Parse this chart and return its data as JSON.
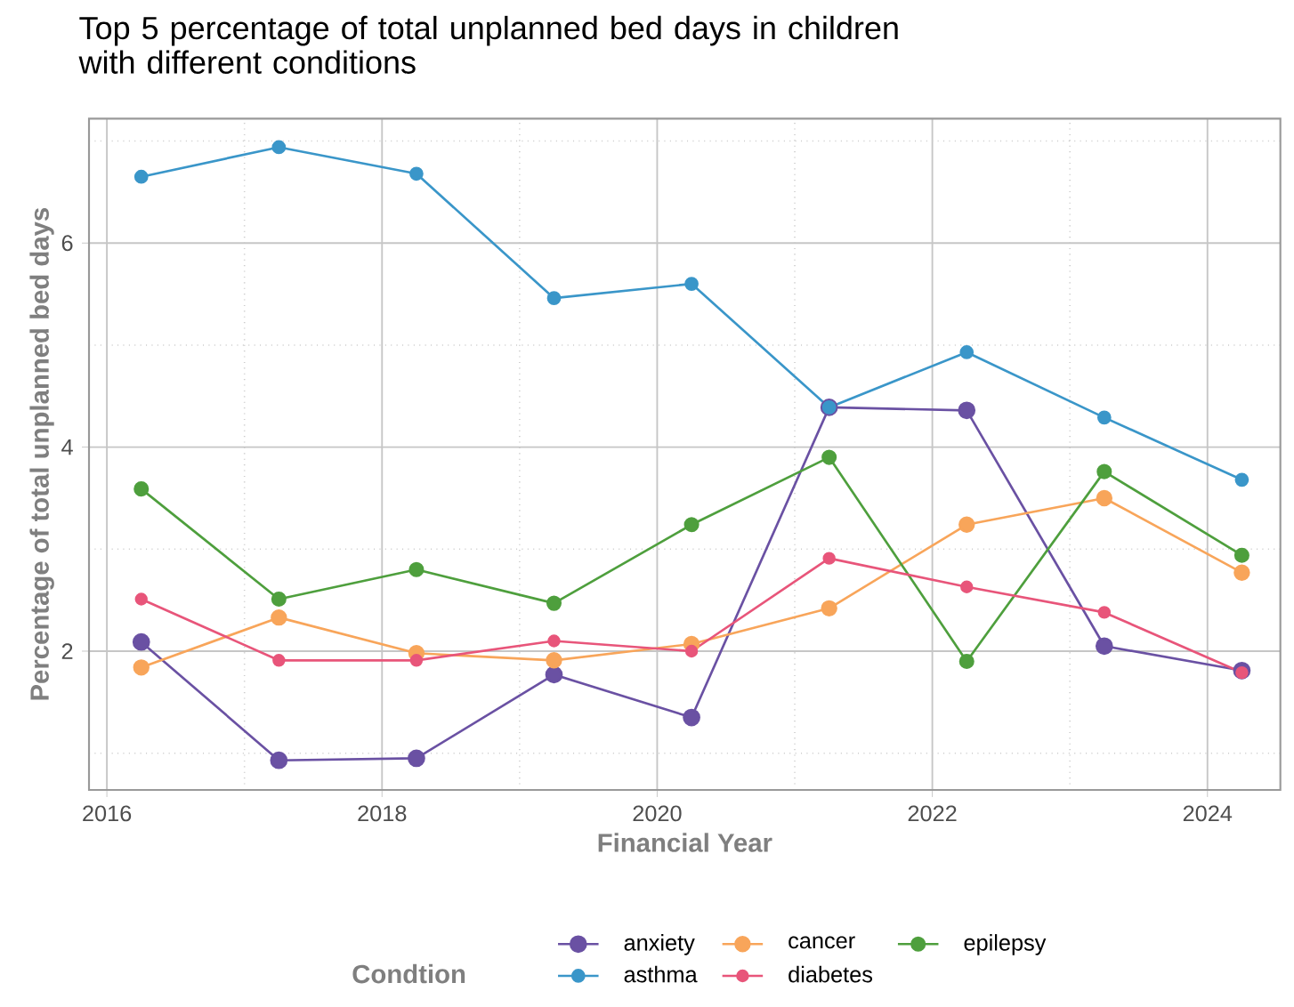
{
  "chart_data": {
    "type": "line",
    "title": "Top 5 percentage of total unplanned bed days in children with different conditions",
    "xlabel": "Financial Year",
    "ylabel": "Percentage of total unplanned bed days",
    "legend_title": "Condtion",
    "x": [
      2016.25,
      2017.25,
      2018.25,
      2019.25,
      2020.25,
      2021.25,
      2022.25,
      2023.25,
      2024.25
    ],
    "series": [
      {
        "name": "anxiety",
        "color": "#6a51a3",
        "values": [
          2.09,
          0.93,
          0.95,
          1.77,
          1.35,
          4.39,
          4.36,
          2.05,
          1.81
        ]
      },
      {
        "name": "cancer",
        "color": "#f8a55a",
        "values": [
          1.84,
          2.33,
          1.98,
          1.91,
          2.07,
          2.42,
          3.24,
          3.5,
          2.77
        ]
      },
      {
        "name": "epilepsy",
        "color": "#4e9f3d",
        "values": [
          3.59,
          2.51,
          2.8,
          2.47,
          3.24,
          3.9,
          1.9,
          3.76,
          2.94
        ]
      },
      {
        "name": "asthma",
        "color": "#3a96c9",
        "values": [
          6.65,
          6.94,
          6.68,
          5.46,
          5.6,
          4.39,
          4.93,
          4.29,
          3.68
        ]
      },
      {
        "name": "diabetes",
        "color": "#e8557a",
        "values": [
          2.51,
          1.91,
          1.91,
          2.1,
          2.0,
          2.91,
          2.63,
          2.38,
          1.79
        ]
      }
    ],
    "xlim": [
      2015.87,
      2024.53
    ],
    "ylim": [
      0.64,
      7.22
    ],
    "xticks": [
      2016,
      {
        "value": 2017,
        "label": null
      },
      2018,
      {
        "value": 2019,
        "label": null
      },
      2020,
      {
        "value": 2021,
        "label": null
      },
      2022,
      {
        "value": 2023,
        "label": null
      },
      2024
    ],
    "yticks": [
      {
        "value": 1,
        "label": null
      },
      2,
      {
        "value": 3,
        "label": null
      },
      4,
      {
        "value": 5,
        "label": null
      },
      6,
      {
        "value": 7,
        "label": null
      }
    ],
    "grid": true,
    "legend": "bottom",
    "marker": "circle",
    "line_style": "solid"
  }
}
